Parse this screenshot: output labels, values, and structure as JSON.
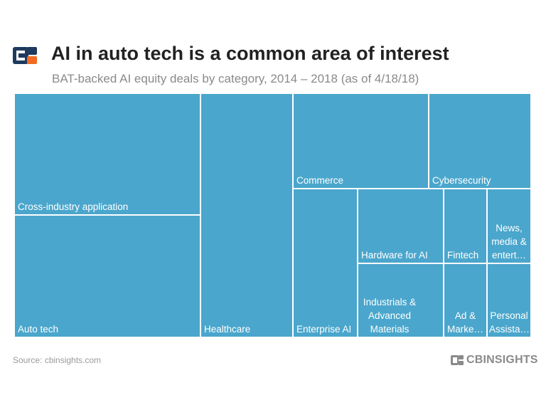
{
  "header": {
    "title": "AI in auto tech is a common area of interest",
    "subtitle": "BAT-backed AI equity deals by category, 2014 – 2018 (as of 4/18/18)"
  },
  "footer": {
    "source": "Source: cbinsights.com",
    "brand": "CBINSIGHTS"
  },
  "colors": {
    "cell": "#4aa6cc",
    "logo_dark": "#1e3a5f",
    "logo_accent": "#f26b21",
    "brand_icon": "#8a8a8a"
  },
  "chart_data": {
    "type": "treemap",
    "title": "AI in auto tech is a common area of interest",
    "subtitle": "BAT-backed AI equity deals by category, 2014 – 2018 (as of 4/18/18)",
    "categories": [
      "Cross-industry application",
      "Auto tech",
      "Healthcare",
      "Commerce",
      "Cybersecurity",
      "Enterprise AI",
      "Hardware for AI",
      "Fintech",
      "News, media & entert…",
      "Industrials & Advanced Materials",
      "Ad & Marke…",
      "Personal Assista…"
    ]
  }
}
